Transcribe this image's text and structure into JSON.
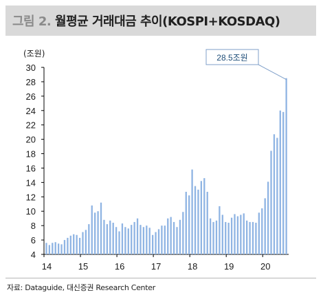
{
  "title": {
    "figure_label": "그림 2.",
    "text": "월평균 거래대금 추이(KOSPI+KOSDAQ)"
  },
  "source": "자료: Dataguide, 대신증권 Research Center",
  "colors": {
    "bar": "#8fb4e3",
    "title_bg": "#d9d9d9",
    "callout_border": "#7f9fc9",
    "callout_text": "#1f4e79"
  },
  "chart_data": {
    "type": "bar",
    "ylabel": "(조원)",
    "ylim": [
      4,
      30
    ],
    "yticks": [
      4,
      6,
      8,
      10,
      12,
      14,
      16,
      18,
      20,
      22,
      24,
      26,
      28,
      30
    ],
    "xtick_labels": [
      "14",
      "15",
      "16",
      "17",
      "18",
      "19",
      "20"
    ],
    "grid": false,
    "annotation": {
      "text": "28.5조원",
      "value": 28.5
    },
    "categories": [
      "2014-01",
      "2014-02",
      "2014-03",
      "2014-04",
      "2014-05",
      "2014-06",
      "2014-07",
      "2014-08",
      "2014-09",
      "2014-10",
      "2014-11",
      "2014-12",
      "2015-01",
      "2015-02",
      "2015-03",
      "2015-04",
      "2015-05",
      "2015-06",
      "2015-07",
      "2015-08",
      "2015-09",
      "2015-10",
      "2015-11",
      "2015-12",
      "2016-01",
      "2016-02",
      "2016-03",
      "2016-04",
      "2016-05",
      "2016-06",
      "2016-07",
      "2016-08",
      "2016-09",
      "2016-10",
      "2016-11",
      "2016-12",
      "2017-01",
      "2017-02",
      "2017-03",
      "2017-04",
      "2017-05",
      "2017-06",
      "2017-07",
      "2017-08",
      "2017-09",
      "2017-10",
      "2017-11",
      "2017-12",
      "2018-01",
      "2018-02",
      "2018-03",
      "2018-04",
      "2018-05",
      "2018-06",
      "2018-07",
      "2018-08",
      "2018-09",
      "2018-10",
      "2018-11",
      "2018-12",
      "2019-01",
      "2019-02",
      "2019-03",
      "2019-04",
      "2019-05",
      "2019-06",
      "2019-07",
      "2019-08",
      "2019-09",
      "2019-10",
      "2019-11",
      "2019-12",
      "2020-01",
      "2020-02",
      "2020-03",
      "2020-04",
      "2020-05",
      "2020-06",
      "2020-07",
      "2020-08"
    ],
    "values": [
      5.6,
      5.3,
      5.6,
      5.7,
      5.5,
      5.4,
      6.0,
      6.3,
      6.6,
      6.8,
      6.7,
      6.3,
      7.1,
      7.4,
      8.2,
      10.8,
      9.8,
      10.0,
      11.2,
      8.8,
      8.2,
      8.7,
      8.4,
      7.8,
      7.2,
      8.3,
      7.8,
      7.6,
      8.1,
      8.5,
      9.0,
      8.1,
      7.8,
      8.0,
      7.7,
      6.7,
      7.1,
      7.5,
      8.0,
      8.0,
      9.0,
      9.2,
      8.5,
      7.8,
      8.8,
      9.9,
      12.7,
      12.2,
      15.8,
      13.5,
      13.0,
      14.2,
      14.6,
      12.7,
      9.0,
      8.5,
      8.7,
      10.7,
      9.5,
      8.5,
      8.4,
      9.1,
      9.6,
      9.3,
      9.5,
      9.7,
      8.7,
      8.5,
      8.5,
      8.4,
      9.8,
      10.4,
      11.8,
      14.1,
      18.4,
      20.7,
      20.2,
      24.0,
      23.8,
      28.5
    ]
  }
}
